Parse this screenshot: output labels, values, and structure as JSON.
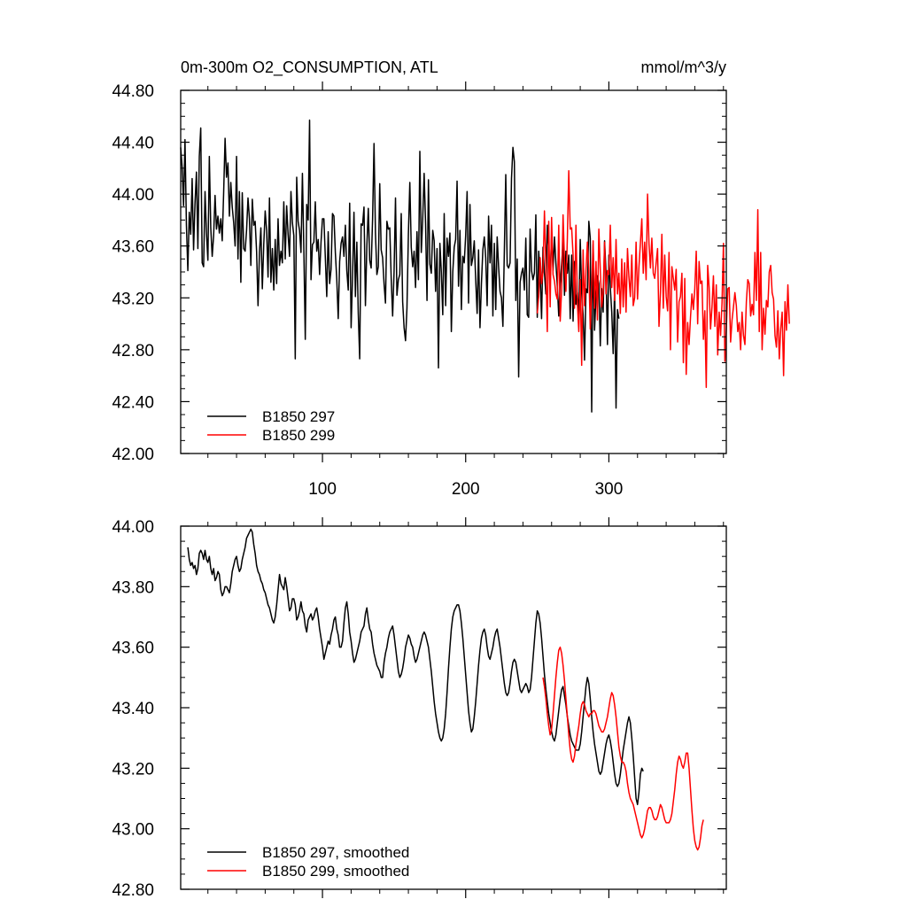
{
  "chart_data": [
    {
      "type": "line",
      "title": "0m-300m O2_CONSUMPTION, ATL",
      "units": "mmol/m^3/y",
      "xlim": [
        1,
        382
      ],
      "ylim": [
        42.0,
        44.8
      ],
      "x_ticks": [
        100,
        200,
        300
      ],
      "x_tick_labels": [
        "100",
        "200",
        "300"
      ],
      "y_ticks": [
        42.0,
        42.4,
        42.8,
        43.2,
        43.6,
        44.0,
        44.4,
        44.8
      ],
      "y_tick_labels": [
        "42.00",
        "42.40",
        "42.80",
        "43.20",
        "43.60",
        "44.00",
        "44.40",
        "44.80"
      ],
      "legend_position": "bottom-left",
      "series": [
        {
          "name": "B1850 297",
          "color": "#000000",
          "x_start": 1,
          "values": [
            44.36,
            44.21,
            43.91,
            44.42,
            43.76,
            43.41,
            43.86,
            43.69,
            44.12,
            43.57,
            43.93,
            44.17,
            43.58,
            44.29,
            44.51,
            43.47,
            43.44,
            44.02,
            43.7,
            43.49,
            44.29,
            43.74,
            43.52,
            43.68,
            43.99,
            43.73,
            43.83,
            43.7,
            43.81,
            43.64,
            44.01,
            44.43,
            44.13,
            44.24,
            43.83,
            44.09,
            43.9,
            43.78,
            43.6,
            44.29,
            43.5,
            44.02,
            43.32,
            44.01,
            43.58,
            43.56,
            43.72,
            43.97,
            43.81,
            43.45,
            43.96,
            43.76,
            43.79,
            43.56,
            43.14,
            43.55,
            43.74,
            43.27,
            43.61,
            43.87,
            43.72,
            43.36,
            43.97,
            43.32,
            43.58,
            43.26,
            43.65,
            43.31,
            43.81,
            43.45,
            43.56,
            43.47,
            43.94,
            43.5,
            43.91,
            43.69,
            43.52,
            44.02,
            43.78,
            43.68,
            42.73,
            44.13,
            43.79,
            43.72,
            43.55,
            44.16,
            43.57,
            42.88,
            43.92,
            43.8,
            44.57,
            43.34,
            43.61,
            43.63,
            43.94,
            43.56,
            43.65,
            43.38,
            43.63,
            43.81,
            43.81,
            43.51,
            43.21,
            43.71,
            43.31,
            43.42,
            43.85,
            43.83,
            43.55,
            43.34,
            43.04,
            43.48,
            43.62,
            43.67,
            43.52,
            43.76,
            43.41,
            43.26,
            43.93,
            42.97,
            43.36,
            43.86,
            43.21,
            43.63,
            43.08,
            42.73,
            43.77,
            43.76,
            43.9,
            43.14,
            43.6,
            43.89,
            43.49,
            43.43,
            43.81,
            44.39,
            43.7,
            43.38,
            43.44,
            44.08,
            43.57,
            43.51,
            43.31,
            43.16,
            43.79,
            43.73,
            43.74,
            43.35,
            43.06,
            43.4,
            43.97,
            43.22,
            43.34,
            43.38,
            43.85,
            43.17,
            42.97,
            42.87,
            43.12,
            43.69,
            44.09,
            43.59,
            43.44,
            43.56,
            43.28,
            43.71,
            43.34,
            44.33,
            43.55,
            43.81,
            44.16,
            43.77,
            43.18,
            44.11,
            43.46,
            43.39,
            43.72,
            43.64,
            43.25,
            43.58,
            42.66,
            43.62,
            43.4,
            43.07,
            43.85,
            43.14,
            43.66,
            43.52,
            43.7,
            42.94,
            43.4,
            43.59,
            43.65,
            44.1,
            43.29,
            43.72,
            43.11,
            43.52,
            43.47,
            43.68,
            44.02,
            43.16,
            43.92,
            43.45,
            43.51,
            43.64,
            43.34,
            43.08,
            43.57,
            42.97,
            43.31,
            43.57,
            43.67,
            43.51,
            43.14,
            43.83,
            43.47,
            43.76,
            43.06,
            43.62,
            43.11,
            43.67,
            43.44,
            43.25,
            43.2,
            42.98,
            43.56,
            44.15,
            43.45,
            43.43,
            43.47,
            44.12,
            44.36,
            44.25,
            43.18,
            43.5,
            42.59,
            43.32,
            43.39,
            43.43,
            43.26,
            43.66,
            43.07,
            43.05,
            43.73,
            43.41,
            43.34,
            43.39,
            43.84,
            43.05,
            43.56,
            43.38,
            43.04,
            43.59,
            43.39,
            43.23,
            43.76,
            43.57,
            43.38,
            43.67,
            43.41,
            43.67,
            43.47,
            43.29,
            43.06,
            43.31,
            43.46,
            43.63,
            43.22,
            43.56,
            43.39,
            43.53,
            43.04,
            43.53,
            43.02,
            43.48,
            43.15,
            43.24,
            43.05,
            43.65,
            43.24,
            43.07,
            42.72,
            43.27,
            43.24,
            43.79,
            43.66,
            42.32,
            43.61,
            42.95,
            43.21,
            43.37,
            43.31,
            42.83,
            43.27,
            43.09,
            43.64,
            43.4,
            42.84,
            43.53,
            43.28,
            43.09,
            42.77,
            43.28,
            42.35,
            43.11,
            43.04
          ]
        },
        {
          "name": "B1850 299",
          "color": "#ff0000",
          "x_start": 250,
          "values": [
            43.08,
            43.21,
            43.51,
            43.31,
            43.4,
            43.87,
            43.46,
            42.94,
            43.79,
            43.13,
            43.82,
            43.38,
            43.33,
            43.23,
            43.19,
            43.76,
            43.02,
            43.26,
            43.84,
            43.49,
            43.25,
            43.66,
            44.18,
            43.73,
            43.74,
            43.53,
            43.12,
            43.76,
            43.16,
            42.94,
            43.34,
            42.68,
            43.57,
            43.14,
            43.41,
            43.63,
            43.41,
            42.96,
            43.26,
            43.64,
            43.12,
            43.48,
            43.03,
            43.73,
            43.42,
            43.13,
            43.24,
            43.63,
            43.23,
            43.41,
            43.38,
            43.76,
            43.28,
            43.51,
            43.18,
            43.65,
            43.23,
            43.39,
            43.08,
            43.5,
            43.13,
            43.47,
            43.09,
            43.58,
            43.36,
            43.21,
            43.53,
            43.14,
            43.2,
            43.63,
            43.19,
            43.44,
            43.62,
            43.81,
            43.39,
            43.63,
            43.34,
            44.0,
            43.62,
            43.43,
            43.66,
            43.39,
            43.35,
            43.47,
            43.58,
            42.98,
            43.24,
            43.69,
            43.12,
            43.53,
            43.21,
            43.1,
            43.55,
            42.8,
            43.44,
            43.35,
            43.26,
            43.42,
            42.86,
            43.17,
            43.21,
            43.39,
            42.7,
            43.35,
            42.61,
            43.01,
            42.84,
            43.05,
            43.23,
            43.11,
            43.27,
            43.56,
            43.0,
            43.48,
            43.31,
            43.33,
            42.88,
            43.1,
            42.51,
            43.45,
            43.28,
            42.96,
            43.13,
            43.37,
            42.98,
            43.3,
            42.76,
            43.09,
            42.91,
            43.16,
            43.62,
            42.71,
            42.95,
            43.27,
            43.28,
            42.86,
            43.03,
            43.13,
            43.24,
            43.14,
            42.94,
            43.01,
            42.8,
            43.09,
            42.91,
            42.84,
            43.17,
            43.34,
            43.31,
            43.06,
            43.15,
            43.07,
            43.55,
            43.18,
            43.88,
            42.94,
            43.55,
            42.8,
            43.12,
            42.92,
            43.18,
            43.13,
            43.4,
            43.45,
            43.24,
            43.19,
            42.91,
            42.82,
            43.1,
            42.73,
            42.96,
            43.09,
            42.6,
            43.17,
            42.95,
            43.3,
            43.0
          ]
        }
      ]
    },
    {
      "type": "line",
      "xlim": [
        1,
        382
      ],
      "ylim": [
        42.8,
        44.0
      ],
      "x_ticks": [
        100,
        200,
        300
      ],
      "y_ticks": [
        42.8,
        43.0,
        43.2,
        43.4,
        43.6,
        43.8,
        44.0
      ],
      "y_tick_labels": [
        "42.80",
        "43.00",
        "43.20",
        "43.40",
        "43.60",
        "43.80",
        "44.00"
      ],
      "legend_position": "bottom-left",
      "series": [
        {
          "name": "B1850 297, smoothed",
          "color": "#000000",
          "x_start": 6,
          "values": [
            43.93,
            43.89,
            43.87,
            43.88,
            43.86,
            43.87,
            43.84,
            43.86,
            43.91,
            43.92,
            43.91,
            43.89,
            43.92,
            43.89,
            43.88,
            43.9,
            43.86,
            43.84,
            43.86,
            43.82,
            43.83,
            43.85,
            43.84,
            43.79,
            43.77,
            43.78,
            43.8,
            43.8,
            43.79,
            43.78,
            43.81,
            43.85,
            43.87,
            43.89,
            43.9,
            43.87,
            43.85,
            43.86,
            43.89,
            43.91,
            43.93,
            43.96,
            43.97,
            43.98,
            43.99,
            43.98,
            43.94,
            43.91,
            43.87,
            43.85,
            43.84,
            43.82,
            43.81,
            43.79,
            43.78,
            43.76,
            43.74,
            43.73,
            43.71,
            43.69,
            43.68,
            43.7,
            43.74,
            43.79,
            43.84,
            43.81,
            43.8,
            43.79,
            43.83,
            43.8,
            43.76,
            43.72,
            43.73,
            43.76,
            43.76,
            43.74,
            43.69,
            43.7,
            43.72,
            43.75,
            43.72,
            43.71,
            43.67,
            43.65,
            43.69,
            43.7,
            43.71,
            43.69,
            43.7,
            43.72,
            43.73,
            43.7,
            43.66,
            43.63,
            43.6,
            43.56,
            43.58,
            43.6,
            43.62,
            43.61,
            43.64,
            43.66,
            43.69,
            43.7,
            43.66,
            43.64,
            43.6,
            43.6,
            43.62,
            43.68,
            43.73,
            43.75,
            43.71,
            43.65,
            43.62,
            43.58,
            43.55,
            43.56,
            43.58,
            43.6,
            43.62,
            43.65,
            43.66,
            43.67,
            43.71,
            43.73,
            43.69,
            43.66,
            43.65,
            43.61,
            43.58,
            43.56,
            43.54,
            43.53,
            43.52,
            43.5,
            43.5,
            43.55,
            43.58,
            43.6,
            43.63,
            43.65,
            43.66,
            43.67,
            43.64,
            43.6,
            43.56,
            43.52,
            43.5,
            43.51,
            43.53,
            43.56,
            43.6,
            43.62,
            43.64,
            43.63,
            43.61,
            43.6,
            43.57,
            43.55,
            43.56,
            43.58,
            43.6,
            43.62,
            43.64,
            43.65,
            43.64,
            43.62,
            43.6,
            43.56,
            43.52,
            43.47,
            43.42,
            43.38,
            43.35,
            43.32,
            43.3,
            43.29,
            43.3,
            43.33,
            43.38,
            43.45,
            43.53,
            43.6,
            43.66,
            43.7,
            43.72,
            43.73,
            43.74,
            43.74,
            43.72,
            43.68,
            43.63,
            43.57,
            43.51,
            43.45,
            43.39,
            43.35,
            43.32,
            43.33,
            43.37,
            43.42,
            43.48,
            43.54,
            43.59,
            43.63,
            43.65,
            43.66,
            43.64,
            43.6,
            43.57,
            43.56,
            43.58,
            43.6,
            43.63,
            43.65,
            43.66,
            43.63,
            43.6,
            43.56,
            43.52,
            43.48,
            43.45,
            43.44,
            43.45,
            43.48,
            43.52,
            43.55,
            43.56,
            43.55,
            43.52,
            43.49,
            43.46,
            43.45,
            43.46,
            43.47,
            43.48,
            43.47,
            43.45,
            43.46,
            43.5,
            43.56,
            43.62,
            43.68,
            43.72,
            43.71,
            43.68,
            43.63,
            43.57,
            43.51,
            43.46,
            43.42,
            43.38,
            43.35,
            43.32,
            43.3,
            43.29,
            43.31,
            43.35,
            43.39,
            43.43,
            43.46,
            43.47,
            43.44,
            43.41,
            43.37,
            43.34,
            43.31,
            43.29,
            43.28,
            43.27,
            43.26,
            43.26,
            43.26,
            43.28,
            43.32,
            43.37,
            43.42,
            43.47,
            43.5,
            43.48,
            43.43,
            43.37,
            43.32,
            43.28,
            43.25,
            43.22,
            43.19,
            43.18,
            43.19,
            43.22,
            43.25,
            43.28,
            43.3,
            43.31,
            43.29,
            43.26,
            43.22,
            43.18,
            43.15,
            43.14,
            43.15,
            43.18,
            43.22,
            43.26,
            43.29,
            43.32,
            43.35,
            43.37,
            43.35,
            43.3,
            43.24,
            43.17,
            43.1,
            43.08,
            43.12,
            43.18,
            43.2,
            43.19
          ]
        },
        {
          "name": "B1850 299, smoothed",
          "color": "#ff0000",
          "x_start": 254,
          "values": [
            43.5,
            43.47,
            43.43,
            43.38,
            43.34,
            43.31,
            43.33,
            43.38,
            43.44,
            43.5,
            43.55,
            43.59,
            43.6,
            43.58,
            43.54,
            43.49,
            43.43,
            43.37,
            43.31,
            43.26,
            43.23,
            43.22,
            43.24,
            43.28,
            43.31,
            43.34,
            43.38,
            43.41,
            43.42,
            43.41,
            43.39,
            43.38,
            43.37,
            43.38,
            43.38,
            43.39,
            43.39,
            43.38,
            43.36,
            43.34,
            43.33,
            43.32,
            43.32,
            43.33,
            43.35,
            43.37,
            43.4,
            43.43,
            43.45,
            43.44,
            43.41,
            43.37,
            43.32,
            43.27,
            43.24,
            43.22,
            43.22,
            43.21,
            43.19,
            43.15,
            43.12,
            43.1,
            43.09,
            43.08,
            43.06,
            43.04,
            43.02,
            43.0,
            42.98,
            42.97,
            42.98,
            43.0,
            43.03,
            43.06,
            43.07,
            43.07,
            43.06,
            43.04,
            43.03,
            43.03,
            43.04,
            43.06,
            43.08,
            43.07,
            43.05,
            43.03,
            43.02,
            43.02,
            43.02,
            43.03,
            43.05,
            43.09,
            43.13,
            43.18,
            43.22,
            43.24,
            43.23,
            43.21,
            43.2,
            43.22,
            43.25,
            43.25,
            43.2,
            43.13,
            43.06,
            43.0,
            42.96,
            42.94,
            42.93,
            42.94,
            42.97,
            43.01,
            43.03
          ]
        }
      ]
    }
  ]
}
